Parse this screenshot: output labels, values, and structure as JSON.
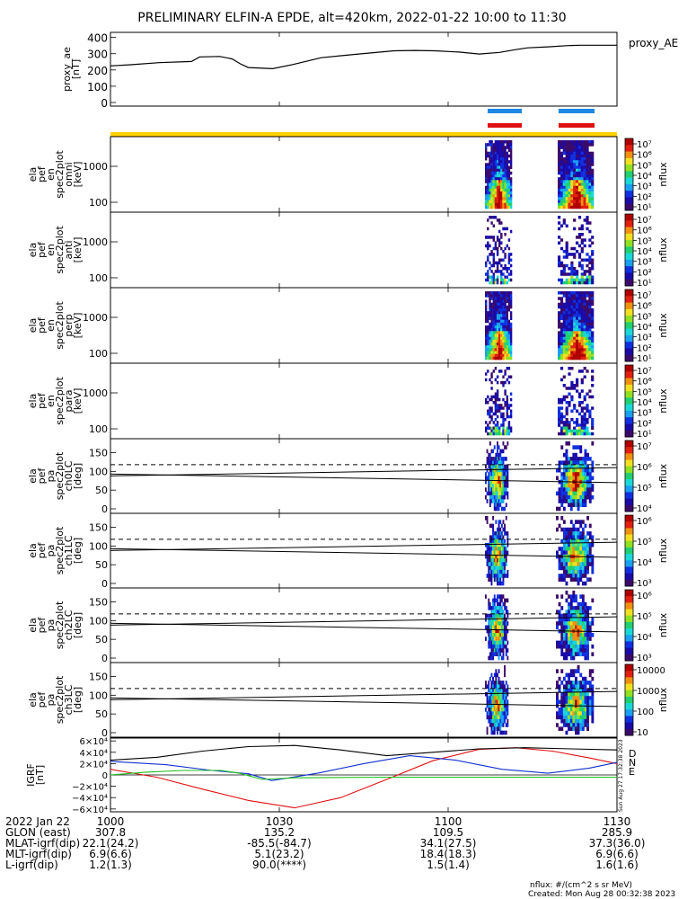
{
  "title": "PRELIMINARY ELFIN-A EPDE, alt=420km, 2022-01-22 10:00 to 11:30",
  "colors": {
    "blue_bar": "#1e88e5",
    "red_bar": "#e01010",
    "yellow_bar": "#ffd200",
    "bx": "#e01010",
    "by": "#1030d0",
    "bz": "#20c020",
    "btot": "#000000"
  },
  "ae_panel": {
    "ylabel": [
      "proxy_ae",
      "[nT]"
    ],
    "legend": "proxy_AE",
    "yticks": [
      "0",
      "100",
      "200",
      "300",
      "400"
    ],
    "ylim": [
      0,
      420
    ],
    "curve": [
      [
        0,
        225
      ],
      [
        5,
        232
      ],
      [
        12,
        245
      ],
      [
        20,
        252
      ],
      [
        22,
        280
      ],
      [
        27,
        283
      ],
      [
        30,
        268
      ],
      [
        32,
        238
      ],
      [
        34,
        215
      ],
      [
        40,
        208
      ],
      [
        45,
        233
      ],
      [
        52,
        275
      ],
      [
        60,
        295
      ],
      [
        70,
        318
      ],
      [
        75,
        320
      ],
      [
        80,
        318
      ],
      [
        86,
        310
      ],
      [
        91,
        298
      ],
      [
        96,
        308
      ],
      [
        100,
        325
      ],
      [
        103,
        336
      ],
      [
        108,
        342
      ],
      [
        113,
        350
      ],
      [
        116,
        352
      ],
      [
        125,
        352
      ]
    ]
  },
  "spectral_panels": [
    {
      "ylabel": [
        "ela",
        "pef",
        "en",
        "spec2plot",
        "omni",
        "[keV]"
      ],
      "yticks": [
        "100",
        "1000"
      ],
      "cbar_ticks": [
        "10⁷",
        "10⁶",
        "10⁵",
        "10⁴",
        "10³",
        "10²",
        "10¹"
      ],
      "cbar_label": "nflux"
    },
    {
      "ylabel": [
        "ela",
        "pef",
        "en",
        "spec2plot",
        "anti",
        "[keV]"
      ],
      "yticks": [
        "100",
        "1000"
      ],
      "cbar_ticks": [
        "10⁷",
        "10⁶",
        "10⁵",
        "10⁴",
        "10³",
        "10²",
        "10¹"
      ],
      "cbar_label": "nflux"
    },
    {
      "ylabel": [
        "ela",
        "pef",
        "en",
        "spec2plot",
        "perp",
        "[keV]"
      ],
      "yticks": [
        "100",
        "1000"
      ],
      "cbar_ticks": [
        "10⁷",
        "10⁶",
        "10⁵",
        "10⁴",
        "10³",
        "10²",
        "10¹"
      ],
      "cbar_label": "nflux"
    },
    {
      "ylabel": [
        "ela",
        "pef",
        "en",
        "spec2plot",
        "para",
        "[keV]"
      ],
      "yticks": [
        "100",
        "1000"
      ],
      "cbar_ticks": [
        "10⁷",
        "10⁶",
        "10⁵",
        "10⁴",
        "10³",
        "10²",
        "10¹"
      ],
      "cbar_label": "nflux"
    }
  ],
  "pa_panels": [
    {
      "ylabel": [
        "ela",
        "pef",
        "pa",
        "spec2plot",
        "ch0LC",
        "[deg]"
      ],
      "yticks": [
        "0",
        "50",
        "100",
        "150"
      ],
      "cbar_ticks": [
        "10⁷",
        "10⁶",
        "10⁵",
        "10⁴"
      ],
      "cbar_label": "nflux"
    },
    {
      "ylabel": [
        "ela",
        "pef",
        "pa",
        "spec2plot",
        "ch1LC",
        "[deg]"
      ],
      "yticks": [
        "0",
        "50",
        "100",
        "150"
      ],
      "cbar_ticks": [
        "10⁶",
        "10⁵",
        "10⁴",
        "10³"
      ],
      "cbar_label": "nflux"
    },
    {
      "ylabel": [
        "ela",
        "pef",
        "pa",
        "spec2plot",
        "ch2LC",
        "[deg]"
      ],
      "yticks": [
        "0",
        "50",
        "100",
        "150"
      ],
      "cbar_ticks": [
        "10⁶",
        "10⁵",
        "10⁴",
        "10³"
      ],
      "cbar_label": "nflux"
    },
    {
      "ylabel": [
        "ela",
        "pef",
        "pa",
        "spec2plot",
        "ch3LC",
        "[deg]"
      ],
      "yticks": [
        "0",
        "50",
        "100",
        "150"
      ],
      "cbar_ticks": [
        "10000",
        "1000",
        "100",
        "10"
      ],
      "cbar_label": "nflux"
    }
  ],
  "bfield_panel": {
    "ylabel": [
      "IGRF",
      "[nT]"
    ],
    "yticks": [
      "6×10⁴",
      "4×10⁴",
      "2×10⁴",
      "0",
      "−2×10⁴",
      "−4×10⁴",
      "−6×10⁴"
    ],
    "legend": [
      "D",
      "N",
      "E"
    ],
    "side_text": "Sun Aug 27 17:32:38 2023",
    "ylim": [
      -65000,
      65000
    ]
  },
  "chart_data": {
    "type": "line",
    "title": "PRELIMINARY ELFIN-A EPDE, alt=420km, 2022-01-22 10:00 to 11:30",
    "x_range_minutes": [
      0,
      90
    ],
    "xticks": [
      "1000",
      "1030",
      "1100",
      "1130"
    ],
    "series": [
      {
        "name": "proxy_AE",
        "points": [
          [
            0,
            225
          ],
          [
            5,
            232
          ],
          [
            12,
            245
          ],
          [
            20,
            252
          ],
          [
            22,
            280
          ],
          [
            27,
            283
          ],
          [
            30,
            268
          ],
          [
            32,
            238
          ],
          [
            34,
            215
          ],
          [
            40,
            208
          ],
          [
            45,
            233
          ],
          [
            52,
            275
          ],
          [
            60,
            295
          ],
          [
            70,
            318
          ],
          [
            75,
            320
          ],
          [
            80,
            318
          ],
          [
            86,
            310
          ],
          [
            91,
            298
          ],
          [
            96,
            308
          ],
          [
            100,
            325
          ],
          [
            103,
            336
          ],
          [
            108,
            342
          ],
          [
            113,
            350
          ],
          [
            116,
            352
          ],
          [
            125,
            352
          ]
        ]
      },
      {
        "name": "D",
        "points": [
          [
            0,
            10000
          ],
          [
            10,
            -4000
          ],
          [
            20,
            -25000
          ],
          [
            30,
            -45000
          ],
          [
            40,
            -58000
          ],
          [
            50,
            -40000
          ],
          [
            60,
            -8000
          ],
          [
            70,
            25000
          ],
          [
            80,
            45000
          ],
          [
            88,
            48000
          ],
          [
            96,
            42000
          ],
          [
            104,
            30000
          ],
          [
            110,
            20000
          ]
        ]
      },
      {
        "name": "N",
        "points": [
          [
            0,
            24000
          ],
          [
            12,
            18000
          ],
          [
            22,
            8000
          ],
          [
            30,
            2000
          ],
          [
            35,
            -10000
          ],
          [
            45,
            3000
          ],
          [
            55,
            20000
          ],
          [
            65,
            34000
          ],
          [
            75,
            26000
          ],
          [
            85,
            10000
          ],
          [
            95,
            3000
          ],
          [
            104,
            12000
          ],
          [
            110,
            22000
          ]
        ]
      },
      {
        "name": "E",
        "points": [
          [
            0,
            0
          ],
          [
            8,
            5000
          ],
          [
            16,
            8000
          ],
          [
            24,
            8000
          ],
          [
            28,
            3000
          ],
          [
            33,
            -8000
          ],
          [
            40,
            -5000
          ],
          [
            60,
            -4000
          ],
          [
            80,
            -4000
          ],
          [
            110,
            -4000
          ]
        ]
      },
      {
        "name": "|B|",
        "points": [
          [
            0,
            26000
          ],
          [
            10,
            31000
          ],
          [
            20,
            42000
          ],
          [
            30,
            50000
          ],
          [
            40,
            52000
          ],
          [
            50,
            44000
          ],
          [
            60,
            34000
          ],
          [
            70,
            40000
          ],
          [
            80,
            46000
          ],
          [
            90,
            48000
          ],
          [
            100,
            46000
          ],
          [
            110,
            44000
          ]
        ]
      }
    ],
    "science_zones_minutes": [
      [
        68,
        74
      ],
      [
        79,
        85
      ]
    ]
  },
  "xaxis": {
    "ticks": [
      "1000",
      "1030",
      "1100",
      "1130"
    ],
    "rows": [
      {
        "label": "2022 Jan 22",
        "values": [
          "",
          "",
          "",
          ""
        ]
      },
      {
        "label": "GLON (east)",
        "values": [
          "307.8",
          "135.2",
          "109.5",
          "285.9"
        ]
      },
      {
        "label": "MLAT-igrf(dip)",
        "values": [
          "22.1(24.2)",
          "-85.5(-84.7)",
          "34.1(27.5)",
          "37.3(36.0)"
        ]
      },
      {
        "label": "MLT-igrf(dip)",
        "values": [
          "6.9(6.6)",
          "5.1(23.2)",
          "18.4(18.3)",
          "6.9(6.6)"
        ]
      },
      {
        "label": "L-igrf(dip)",
        "values": [
          "1.2(1.3)",
          "90.0(****)",
          "1.5(1.4)",
          "1.6(1.6)"
        ]
      }
    ]
  },
  "footer": {
    "units": "nflux: #/(cm^2 s sr MeV)",
    "created": "Created: Mon Aug 28 00:32:38 2023"
  }
}
